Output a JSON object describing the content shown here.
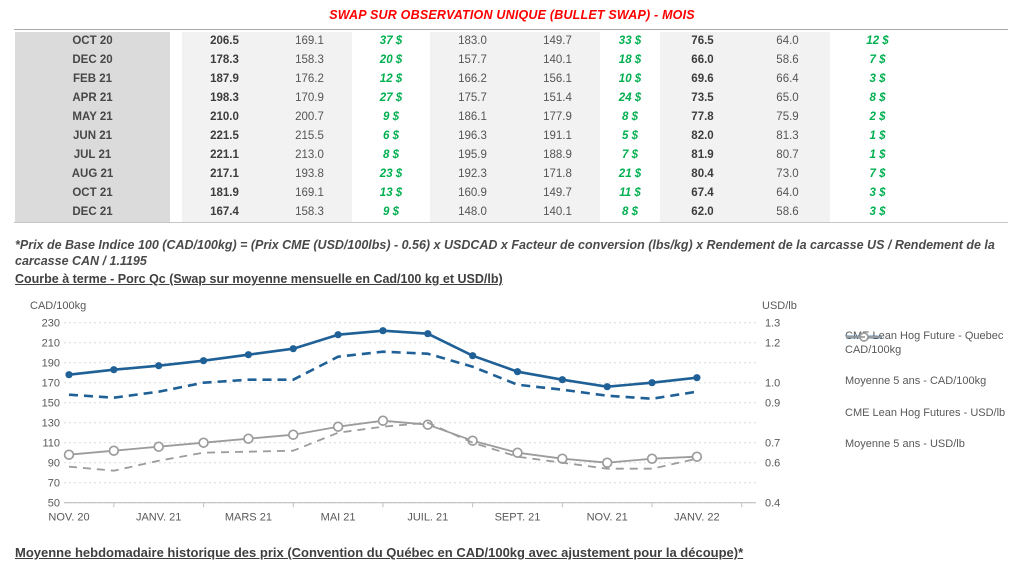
{
  "title": "SWAP SUR OBSERVATION UNIQUE (BULLET SWAP) - MOIS",
  "colors": {
    "title_red": "#FF0000",
    "green_diff": "#00B050",
    "blue_line": "#1F6096",
    "gray_line": "#9C9C9C"
  },
  "table": {
    "rows": [
      {
        "month": "OCT 20",
        "v1": "206.5",
        "v2": "169.1",
        "d1": "37 $",
        "v3": "183.0",
        "v4": "149.7",
        "d2": "33 $",
        "v5": "76.5",
        "v6": "64.0",
        "d3": "12 $"
      },
      {
        "month": "DEC 20",
        "v1": "178.3",
        "v2": "158.3",
        "d1": "20 $",
        "v3": "157.7",
        "v4": "140.1",
        "d2": "18 $",
        "v5": "66.0",
        "v6": "58.6",
        "d3": "7 $"
      },
      {
        "month": "FEB 21",
        "v1": "187.9",
        "v2": "176.2",
        "d1": "12 $",
        "v3": "166.2",
        "v4": "156.1",
        "d2": "10 $",
        "v5": "69.6",
        "v6": "66.4",
        "d3": "3 $"
      },
      {
        "month": "APR 21",
        "v1": "198.3",
        "v2": "170.9",
        "d1": "27 $",
        "v3": "175.7",
        "v4": "151.4",
        "d2": "24 $",
        "v5": "73.5",
        "v6": "65.0",
        "d3": "8 $"
      },
      {
        "month": "MAY 21",
        "v1": "210.0",
        "v2": "200.7",
        "d1": "9 $",
        "v3": "186.1",
        "v4": "177.9",
        "d2": "8 $",
        "v5": "77.8",
        "v6": "75.9",
        "d3": "2 $"
      },
      {
        "month": "JUN 21",
        "v1": "221.5",
        "v2": "215.5",
        "d1": "6 $",
        "v3": "196.3",
        "v4": "191.1",
        "d2": "5 $",
        "v5": "82.0",
        "v6": "81.3",
        "d3": "1 $"
      },
      {
        "month": "JUL 21",
        "v1": "221.1",
        "v2": "213.0",
        "d1": "8 $",
        "v3": "195.9",
        "v4": "188.9",
        "d2": "7 $",
        "v5": "81.9",
        "v6": "80.7",
        "d3": "1 $"
      },
      {
        "month": "AUG 21",
        "v1": "217.1",
        "v2": "193.8",
        "d1": "23 $",
        "v3": "192.3",
        "v4": "171.8",
        "d2": "21 $",
        "v5": "80.4",
        "v6": "73.0",
        "d3": "7 $"
      },
      {
        "month": "OCT 21",
        "v1": "181.9",
        "v2": "169.1",
        "d1": "13 $",
        "v3": "160.9",
        "v4": "149.7",
        "d2": "11 $",
        "v5": "67.4",
        "v6": "64.0",
        "d3": "3 $"
      },
      {
        "month": "DEC 21",
        "v1": "167.4",
        "v2": "158.3",
        "d1": "9 $",
        "v3": "148.0",
        "v4": "140.1",
        "d2": "8 $",
        "v5": "62.0",
        "v6": "58.6",
        "d3": "3 $"
      }
    ]
  },
  "footnote": "*Prix de Base Indice 100 (CAD/100kg) = (Prix CME (USD/100lbs) - 0.56) x USDCAD x Facteur de conversion (lbs/kg) x Rendement de la carcasse US / Rendement de la carcasse CAN / 1.1195",
  "chart_heading": "Courbe à terme - Porc Qc (Swap sur moyenne mensuelle en Cad/100 kg et USD/lb)",
  "bottom_heading": "Moyenne hebdomadaire historique des prix (Convention du Québec en CAD/100kg avec ajustement pour la découpe)*",
  "chart_data": {
    "type": "line",
    "title": "Courbe à terme - Porc Qc (Swap sur moyenne mensuelle en Cad/100 kg et USD/lb)",
    "x_tick_labels": [
      "NOV. 20",
      "JANV. 21",
      "MARS 21",
      "MAI 21",
      "JUIL. 21",
      "SEPT. 21",
      "NOV. 21",
      "JANV. 22"
    ],
    "x_points": 15,
    "left_axis": {
      "label": "CAD/100kg",
      "ticks": [
        230,
        210,
        190,
        170,
        150,
        130,
        110,
        90,
        70,
        50
      ],
      "range": [
        50,
        230
      ]
    },
    "right_axis": {
      "label": "USD/lb",
      "ticks": [
        1.3,
        1.2,
        1.0,
        0.9,
        0.7,
        0.6,
        0.4
      ],
      "range": [
        0.4,
        1.3
      ]
    },
    "grid": "horizontal-dashed",
    "legend_position": "right",
    "series": [
      {
        "name": "CME Lean Hog Future - Quebec CAD/100kg",
        "axis": "left",
        "line": "solid",
        "marker": "filled-circle",
        "color": "#1F6096",
        "values": [
          178,
          183,
          187,
          192,
          198,
          204,
          218,
          222,
          219,
          197,
          181,
          173,
          166,
          170,
          175
        ]
      },
      {
        "name": "Moyenne 5 ans - CAD/100kg",
        "axis": "left",
        "line": "dashed",
        "marker": "none",
        "color": "#1F6096",
        "values": [
          158,
          155,
          161,
          170,
          173,
          173,
          196,
          201,
          199,
          186,
          168,
          163,
          157,
          154,
          161
        ]
      },
      {
        "name": "CME Lean Hog Futures - USD/lb",
        "axis": "right",
        "line": "solid",
        "marker": "open-circle",
        "color": "#9C9C9C",
        "values": [
          0.64,
          0.66,
          0.68,
          0.7,
          0.72,
          0.74,
          0.78,
          0.81,
          0.79,
          0.71,
          0.65,
          0.62,
          0.6,
          0.62,
          0.63
        ]
      },
      {
        "name": "Moyenne 5 ans - USD/lb",
        "axis": "right",
        "line": "dashed",
        "marker": "none",
        "color": "#9C9C9C",
        "values": [
          0.58,
          0.56,
          0.61,
          0.65,
          0.655,
          0.66,
          0.75,
          0.78,
          0.8,
          0.7,
          0.63,
          0.6,
          0.57,
          0.57,
          0.62
        ]
      }
    ]
  }
}
